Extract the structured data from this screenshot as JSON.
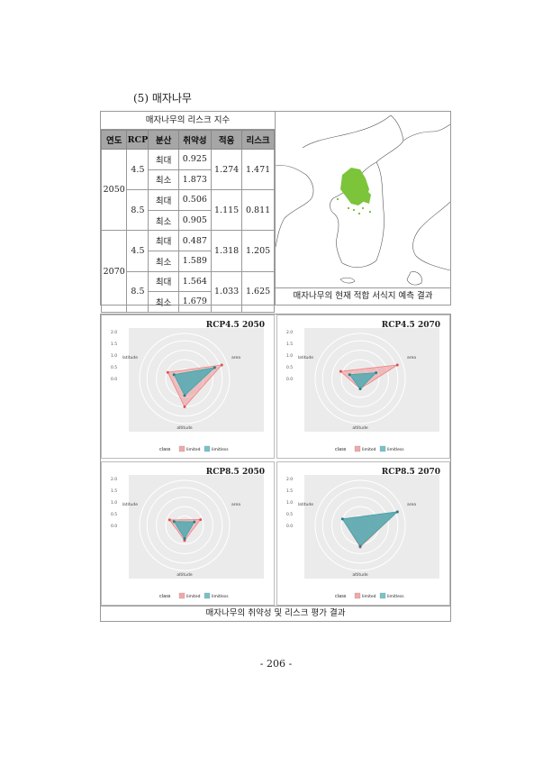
{
  "section": {
    "title": "(5) 매자나무"
  },
  "risk_table": {
    "caption": "매자나무의 리스크 지수",
    "headers": [
      "연도",
      "RCP",
      "분산",
      "취약성",
      "적응",
      "리스크"
    ],
    "rows": [
      {
        "year": "2050",
        "rcp": "4.5",
        "dist": "최대",
        "vuln": "0.925",
        "adapt": "1.274",
        "risk": "1.471"
      },
      {
        "dist": "최소",
        "vuln": "1.873"
      },
      {
        "rcp": "8.5",
        "dist": "최대",
        "vuln": "0.506",
        "adapt": "1.115",
        "risk": "0.811"
      },
      {
        "dist": "최소",
        "vuln": "0.905"
      },
      {
        "year": "2070",
        "rcp": "4.5",
        "dist": "최대",
        "vuln": "0.487",
        "adapt": "1.318",
        "risk": "1.205"
      },
      {
        "dist": "최소",
        "vuln": "1.589"
      },
      {
        "rcp": "8.5",
        "dist": "최대",
        "vuln": "1.564",
        "adapt": "1.033",
        "risk": "1.625"
      },
      {
        "dist": "최소",
        "vuln": "1.679"
      }
    ]
  },
  "map": {
    "caption": "매자나무의 현재 적합 서식지 예측 결과",
    "habitat_color": "#7cc43a"
  },
  "radar_section": {
    "caption": "매자나무의 취약성 및 리스크 평가 결과"
  },
  "radar_common": {
    "axis_labels": {
      "area": "area",
      "latitude": "latitude",
      "altitude": "altitude"
    },
    "ticks": [
      "2.0",
      "1.5",
      "1.0",
      "0.5",
      "0.0"
    ],
    "legend_title": "class",
    "legend_items": [
      "limited",
      "limitless"
    ],
    "colors": {
      "limited": "#f08080",
      "limitless": "#3aa8b0",
      "panel_bg": "#ebebeb"
    }
  },
  "chart_data": [
    {
      "type": "radar",
      "title": "RCP4.5  2050",
      "axes": [
        "area",
        "altitude",
        "latitude"
      ],
      "series": [
        {
          "name": "limited",
          "values": [
            2.1,
            1.5,
            0.95
          ]
        },
        {
          "name": "limitless",
          "values": [
            1.7,
            0.9,
            0.6
          ]
        }
      ]
    },
    {
      "type": "radar",
      "title": "RCP4.5  2070",
      "axes": [
        "area",
        "altitude",
        "latitude"
      ],
      "series": [
        {
          "name": "limited",
          "values": [
            2.1,
            0.55,
            1.1
          ]
        },
        {
          "name": "limitless",
          "values": [
            0.9,
            0.55,
            0.6
          ]
        }
      ]
    },
    {
      "type": "radar",
      "title": "RCP8.5  2050",
      "axes": [
        "area",
        "altitude",
        "latitude"
      ],
      "series": [
        {
          "name": "limited",
          "values": [
            0.9,
            0.8,
            0.85
          ]
        },
        {
          "name": "limitless",
          "values": [
            0.55,
            0.7,
            0.6
          ]
        }
      ]
    },
    {
      "type": "radar",
      "title": "RCP8.5  2070",
      "axes": [
        "area",
        "altitude",
        "latitude"
      ],
      "series": [
        {
          "name": "limited",
          "values": [
            2.1,
            1.15,
            1.0
          ]
        },
        {
          "name": "limitless",
          "values": [
            2.1,
            1.1,
            1.0
          ]
        }
      ]
    }
  ],
  "page": {
    "number": "- 206 -"
  }
}
